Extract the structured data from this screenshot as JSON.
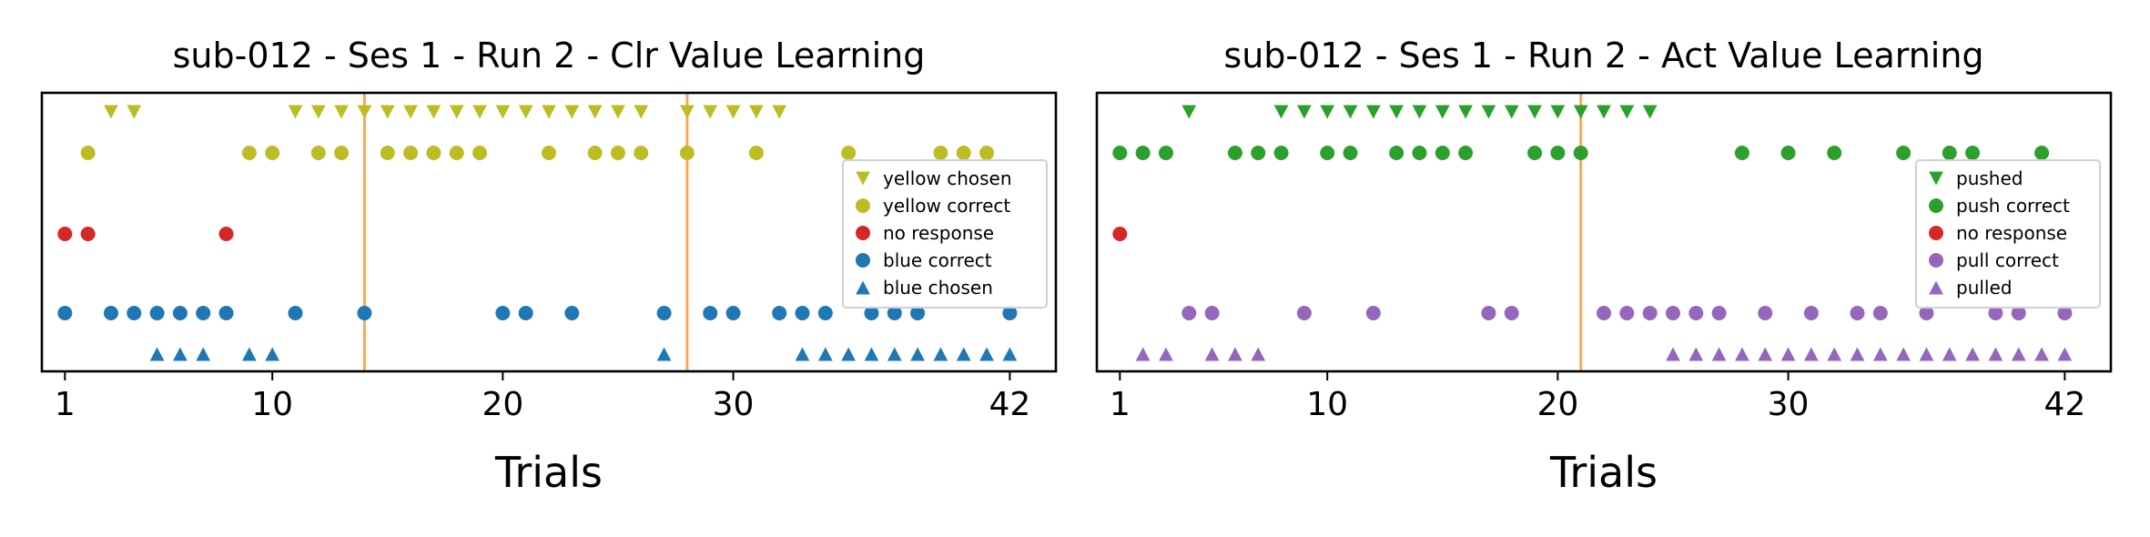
{
  "chart_data": [
    {
      "type": "scatter",
      "title": "sub-012 - Ses 1 - Run 2 - Clr Value Learning",
      "xlabel": "Trials",
      "ylabel": "",
      "xlim": [
        0,
        44
      ],
      "xticks": [
        1,
        10,
        20,
        30,
        42
      ],
      "grid": false,
      "legend_position": "right",
      "colors": {
        "yellow": "#bcbd22",
        "red": "#d62728",
        "blue": "#1f77b4",
        "orange": "#ff7f0e"
      },
      "vlines": [
        14,
        28
      ],
      "series": [
        {
          "name": "yellow chosen",
          "marker": "triangle-down",
          "color": "#bcbd22",
          "row": 5,
          "x": [
            3,
            4,
            11,
            12,
            13,
            14,
            15,
            16,
            17,
            18,
            19,
            20,
            21,
            22,
            23,
            24,
            25,
            26,
            28,
            29,
            30,
            31,
            32
          ]
        },
        {
          "name": "yellow correct",
          "marker": "circle",
          "color": "#bcbd22",
          "row": 4,
          "x": [
            2,
            9,
            10,
            12,
            13,
            15,
            16,
            17,
            18,
            19,
            22,
            24,
            25,
            26,
            28,
            31,
            35,
            39,
            40,
            41
          ]
        },
        {
          "name": "no response",
          "marker": "circle",
          "color": "#d62728",
          "row": 3,
          "x": [
            1,
            2,
            8
          ]
        },
        {
          "name": "blue correct",
          "marker": "circle",
          "color": "#1f77b4",
          "row": 2,
          "x": [
            1,
            3,
            4,
            5,
            6,
            7,
            8,
            11,
            14,
            20,
            21,
            23,
            27,
            29,
            30,
            32,
            33,
            34,
            36,
            37,
            38,
            42
          ]
        },
        {
          "name": "blue chosen",
          "marker": "triangle-up",
          "color": "#1f77b4",
          "row": 1,
          "x": [
            5,
            6,
            7,
            9,
            10,
            27,
            33,
            34,
            35,
            36,
            37,
            38,
            39,
            40,
            41,
            42
          ]
        }
      ]
    },
    {
      "type": "scatter",
      "title": "sub-012 - Ses 1 - Run 2 - Act Value Learning",
      "xlabel": "Trials",
      "ylabel": "",
      "xlim": [
        0,
        44
      ],
      "xticks": [
        1,
        10,
        20,
        30,
        42
      ],
      "grid": false,
      "legend_position": "right",
      "colors": {
        "green": "#2ca02c",
        "red": "#d62728",
        "purple": "#9467bd",
        "orange": "#ff7f0e"
      },
      "vlines": [
        21
      ],
      "series": [
        {
          "name": "pushed",
          "marker": "triangle-down",
          "color": "#2ca02c",
          "row": 5,
          "x": [
            4,
            8,
            9,
            10,
            11,
            12,
            13,
            14,
            15,
            16,
            17,
            18,
            19,
            20,
            21,
            22,
            23,
            24
          ]
        },
        {
          "name": "push correct",
          "marker": "circle",
          "color": "#2ca02c",
          "row": 4,
          "x": [
            1,
            2,
            3,
            6,
            7,
            8,
            10,
            11,
            13,
            14,
            15,
            16,
            19,
            20,
            21,
            28,
            30,
            32,
            35,
            37,
            38,
            41
          ]
        },
        {
          "name": "no response",
          "marker": "circle",
          "color": "#d62728",
          "row": 3,
          "x": [
            1
          ]
        },
        {
          "name": "pull correct",
          "marker": "circle",
          "color": "#9467bd",
          "row": 2,
          "x": [
            4,
            5,
            9,
            12,
            17,
            18,
            22,
            23,
            24,
            25,
            26,
            27,
            29,
            31,
            33,
            34,
            36,
            39,
            40,
            42
          ]
        },
        {
          "name": "pulled",
          "marker": "triangle-up",
          "color": "#9467bd",
          "row": 1,
          "x": [
            2,
            3,
            5,
            6,
            7,
            25,
            26,
            27,
            28,
            29,
            30,
            31,
            32,
            33,
            34,
            35,
            36,
            37,
            38,
            39,
            40,
            41,
            42
          ]
        }
      ]
    }
  ]
}
